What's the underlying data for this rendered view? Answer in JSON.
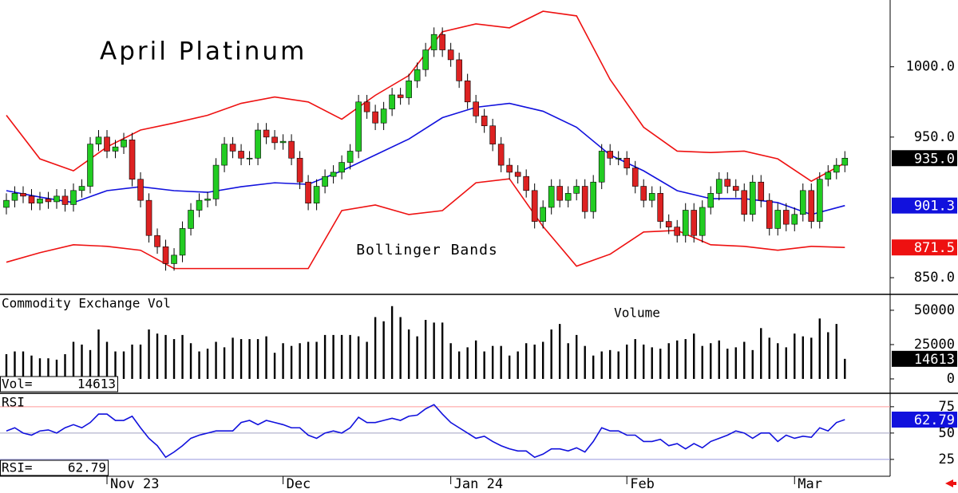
{
  "chart_data": [
    {
      "type": "candlestick",
      "title": "April Platinum",
      "annotation": "Bollinger Bands",
      "xlim": [
        -0.76,
        105.4
      ],
      "ylim": [
        838.7,
        1047.5
      ],
      "yticks": [
        {
          "value": 850,
          "label": "850.0"
        },
        {
          "value": 950,
          "label": "950.0"
        },
        {
          "value": 1000,
          "label": "1000.0"
        }
      ],
      "up_color": "#22cc22",
      "down_color": "#dd2222",
      "open": [
        900,
        905,
        910,
        908,
        903,
        906,
        904,
        908,
        902,
        912,
        915,
        945,
        950,
        940,
        943,
        948,
        920,
        905,
        880,
        872,
        860,
        866,
        885,
        898,
        905,
        906,
        930,
        945,
        940,
        935,
        935,
        955,
        950,
        946,
        947,
        935,
        918,
        903,
        915,
        922,
        925,
        932,
        940,
        975,
        968,
        960,
        970,
        980,
        978,
        990,
        998,
        1012,
        1023,
        1012,
        1005,
        990,
        975,
        965,
        958,
        945,
        930,
        925,
        922,
        912,
        890,
        900,
        915,
        905,
        910,
        915,
        897,
        918,
        940,
        935,
        935,
        928,
        915,
        905,
        910,
        890,
        886,
        880,
        898,
        880,
        900,
        910,
        920,
        915,
        912,
        895,
        918,
        905,
        885,
        898,
        888,
        895,
        912,
        890,
        920,
        925,
        930
      ],
      "high": [
        910,
        915,
        915,
        913,
        911,
        911,
        913,
        913,
        917,
        920,
        950,
        955,
        955,
        948,
        953,
        953,
        925,
        910,
        885,
        877,
        871,
        890,
        903,
        910,
        911,
        935,
        950,
        950,
        945,
        940,
        960,
        960,
        955,
        952,
        952,
        940,
        923,
        920,
        927,
        930,
        937,
        945,
        980,
        980,
        973,
        975,
        985,
        985,
        995,
        1003,
        1017,
        1028,
        1028,
        1017,
        1010,
        995,
        980,
        970,
        963,
        950,
        935,
        930,
        927,
        917,
        905,
        920,
        920,
        915,
        920,
        920,
        923,
        945,
        945,
        940,
        940,
        933,
        920,
        915,
        915,
        895,
        891,
        903,
        903,
        905,
        915,
        925,
        925,
        920,
        917,
        923,
        923,
        910,
        903,
        903,
        900,
        917,
        917,
        925,
        930,
        935,
        940
      ],
      "low": [
        895,
        900,
        903,
        898,
        898,
        899,
        899,
        897,
        897,
        907,
        910,
        940,
        935,
        935,
        938,
        915,
        900,
        875,
        867,
        855,
        855,
        861,
        880,
        893,
        900,
        901,
        925,
        935,
        930,
        930,
        930,
        945,
        941,
        941,
        930,
        913,
        898,
        898,
        910,
        917,
        920,
        927,
        935,
        963,
        955,
        955,
        965,
        973,
        973,
        985,
        993,
        1007,
        1007,
        1000,
        985,
        970,
        960,
        953,
        940,
        925,
        920,
        917,
        907,
        885,
        885,
        895,
        900,
        900,
        905,
        892,
        892,
        913,
        930,
        930,
        923,
        910,
        900,
        900,
        885,
        881,
        875,
        875,
        875,
        875,
        895,
        905,
        910,
        907,
        890,
        890,
        900,
        880,
        880,
        883,
        883,
        890,
        885,
        885,
        915,
        920,
        925
      ],
      "close": [
        905,
        910,
        908,
        903,
        906,
        904,
        908,
        902,
        912,
        915,
        945,
        950,
        940,
        943,
        948,
        920,
        905,
        880,
        872,
        860,
        866,
        885,
        898,
        905,
        906,
        930,
        945,
        940,
        935,
        935,
        955,
        950,
        946,
        947,
        935,
        918,
        903,
        915,
        922,
        925,
        932,
        940,
        975,
        968,
        960,
        970,
        980,
        978,
        990,
        998,
        1012,
        1023,
        1012,
        1005,
        990,
        975,
        965,
        958,
        945,
        930,
        925,
        922,
        912,
        890,
        900,
        915,
        905,
        910,
        915,
        897,
        918,
        940,
        935,
        935,
        928,
        915,
        905,
        910,
        890,
        886,
        880,
        898,
        880,
        900,
        910,
        920,
        915,
        912,
        895,
        918,
        905,
        885,
        898,
        888,
        895,
        912,
        890,
        920,
        925,
        930,
        935
      ],
      "overlays": {
        "x": [
          0,
          4,
          8,
          12,
          16,
          20,
          24,
          28,
          32,
          36,
          40,
          44,
          48,
          52,
          56,
          60,
          64,
          68,
          72,
          76,
          80,
          84,
          88,
          92,
          96,
          100
        ],
        "series": [
          {
            "color": "#ee1111",
            "values": [
              965.5,
              934.5,
              926,
              943,
              955,
              960,
              965.5,
              974,
              978.5,
              975,
              962.7,
              979.7,
              993.8,
              1024.9,
              1030.5,
              1027.7,
              1039.5,
              1036.2,
              991,
              957,
              940,
              939,
              940,
              934.5,
              918.6,
              931.6
            ]
          },
          {
            "color": "#1111dd",
            "values": [
              911.9,
              907.3,
              903.4,
              911.9,
              914.7,
              911.9,
              910.7,
              914.7,
              917.5,
              916.4,
              926,
              937.3,
              948.6,
              963.8,
              971.2,
              974,
              968.4,
              957,
              937.3,
              926,
              911.9,
              906.2,
              906.2,
              903.4,
              894.9,
              901.3
            ]
          },
          {
            "color": "#ee1111",
            "values": [
              861,
              867.8,
              873.4,
              872.3,
              869.5,
              856.5,
              856.5,
              856.5,
              856.5,
              856.5,
              897.7,
              901.7,
              894.9,
              897.7,
              917.5,
              920.3,
              886.4,
              858.2,
              866.7,
              882.5,
              883.6,
              873.4,
              872.3,
              869.5,
              872.3,
              871.5
            ]
          }
        ]
      },
      "markers": [
        {
          "value": 935,
          "label": "935.0",
          "color": "#000000"
        },
        {
          "value": 901.3,
          "label": "901.3",
          "color": "#1111dd"
        },
        {
          "value": 871.5,
          "label": "871.5",
          "color": "#ee1111"
        }
      ]
    },
    {
      "type": "bar",
      "title": "Commodity Exchange Vol",
      "annotation": "Volume",
      "color": "#000000",
      "xlim": [
        -0.76,
        105.4
      ],
      "ylim": [
        -9900,
        61000
      ],
      "yticks": [
        0,
        25000,
        50000
      ],
      "values": [
        18000,
        20000,
        20000,
        17000,
        15000,
        15000,
        14000,
        18000,
        27000,
        25000,
        21000,
        36000,
        27000,
        20000,
        20000,
        25000,
        25000,
        36000,
        33000,
        32000,
        29000,
        32000,
        26000,
        20000,
        22000,
        27000,
        23000,
        30000,
        29000,
        29000,
        29000,
        31000,
        19000,
        26000,
        24000,
        26000,
        27000,
        27000,
        32000,
        32000,
        32000,
        32000,
        31000,
        27000,
        45000,
        42000,
        53000,
        45000,
        36000,
        31000,
        43000,
        41000,
        41000,
        26000,
        20000,
        23000,
        28000,
        20000,
        24000,
        24000,
        17000,
        20000,
        26000,
        25000,
        27000,
        36000,
        40000,
        26000,
        32000,
        24000,
        17000,
        20000,
        21000,
        20000,
        25000,
        29000,
        25000,
        23000,
        22000,
        26000,
        28000,
        29000,
        33000,
        24000,
        26000,
        28000,
        22000,
        23000,
        27000,
        21000,
        37000,
        30000,
        26000,
        23000,
        33000,
        31000,
        30000,
        44000,
        34000,
        40000,
        14613
      ],
      "readout": {
        "label": "Vol=",
        "value": 14613
      },
      "markers": [
        {
          "value": 14613,
          "color": "#000000"
        }
      ]
    },
    {
      "type": "line",
      "title": "RSI",
      "color": "#1111dd",
      "xlim": [
        -0.76,
        105.4
      ],
      "ylim": [
        9,
        87
      ],
      "yticks": [
        25,
        50,
        75
      ],
      "grid": true,
      "grid_colors": [
        "#9999dd",
        "#a0a0c0",
        "#ff9999"
      ],
      "xticks": [
        {
          "value": 12,
          "label": "Nov 23"
        },
        {
          "value": 33,
          "label": "Dec"
        },
        {
          "value": 53,
          "label": "Jan 24"
        },
        {
          "value": 74,
          "label": "Feb"
        },
        {
          "value": 94,
          "label": "Mar"
        }
      ],
      "values": [
        52,
        55,
        50,
        48,
        52,
        53,
        50,
        55,
        58,
        55,
        60,
        68,
        68,
        62,
        62,
        66,
        55,
        45,
        38,
        27,
        32,
        38,
        45,
        48,
        50,
        52,
        52,
        52,
        60,
        62,
        58,
        62,
        60,
        58,
        55,
        55,
        48,
        45,
        50,
        52,
        50,
        55,
        65,
        60,
        60,
        62,
        64,
        62,
        66,
        67,
        73,
        77,
        68,
        60,
        55,
        50,
        45,
        47,
        42,
        38,
        35,
        33,
        33,
        27,
        30,
        35,
        35,
        33,
        36,
        32,
        42,
        55,
        52,
        52,
        48,
        48,
        42,
        42,
        44,
        38,
        40,
        35,
        40,
        36,
        42,
        45,
        48,
        52,
        50,
        45,
        50,
        50,
        42,
        48,
        45,
        47,
        46,
        55,
        52,
        60,
        62.79
      ],
      "readout": {
        "label": "RSI=",
        "value": 62.79
      },
      "markers": [
        {
          "value": 62.79,
          "color": "#1111dd"
        }
      ]
    }
  ]
}
